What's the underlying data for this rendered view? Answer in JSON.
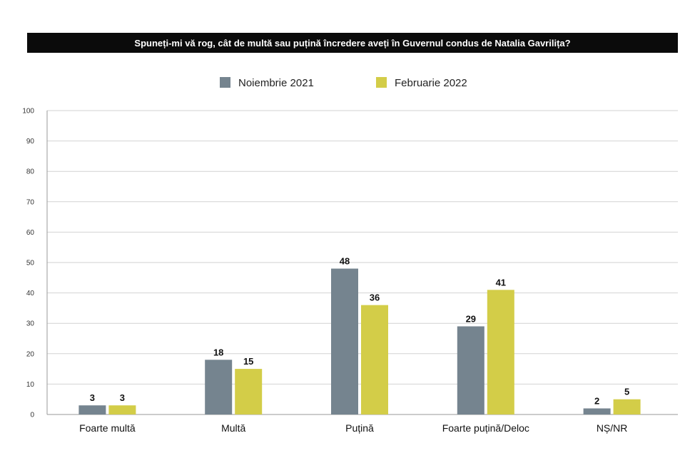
{
  "chart_data": {
    "type": "bar",
    "title": "Spuneți-mi vă rog, cât de multă sau puțină încredere aveți în Guvernul condus de Natalia Gavrilița?",
    "categories": [
      "Foarte multă",
      "Multă",
      "Puțină",
      "Foarte puțină/Deloc",
      "NȘ/NR"
    ],
    "series": [
      {
        "name": "Noiembrie 2021",
        "color": "#75848f",
        "values": [
          3,
          18,
          48,
          29,
          2
        ]
      },
      {
        "name": "Februarie 2022",
        "color": "#d3cd48",
        "values": [
          3,
          15,
          36,
          41,
          5
        ]
      }
    ],
    "ylim": [
      0,
      100
    ],
    "yticks": [
      0,
      10,
      20,
      30,
      40,
      50,
      60,
      70,
      80,
      90,
      100
    ],
    "grid": true,
    "legend": "top-center"
  }
}
